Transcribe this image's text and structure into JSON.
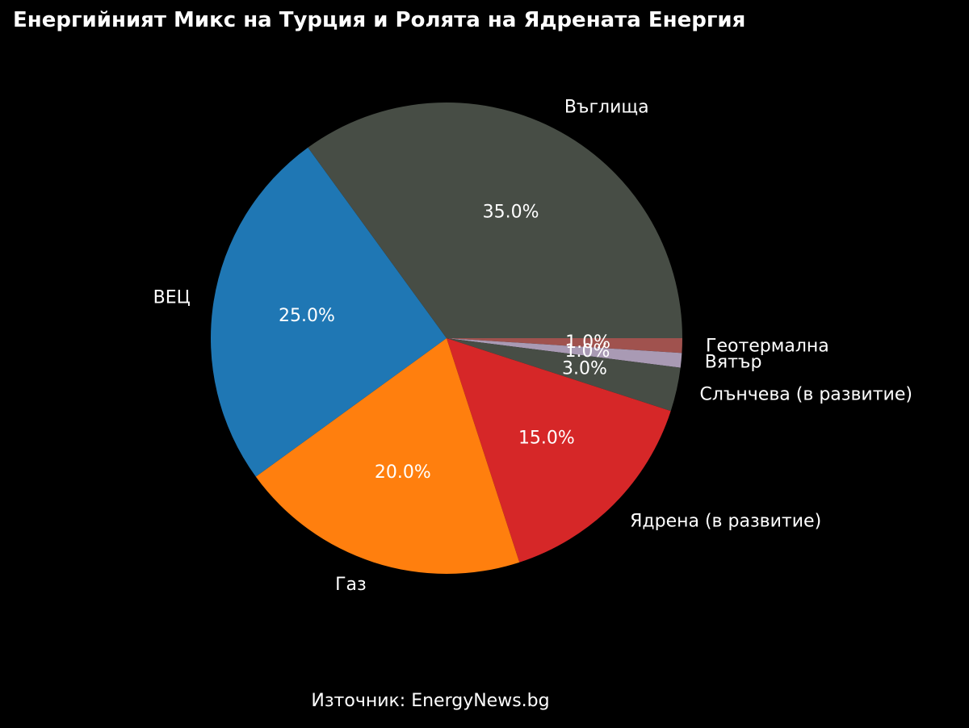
{
  "chart_data": {
    "type": "pie",
    "title": "Енергийният Микс на Турция и Ролята на Ядрената Енергия",
    "slices": [
      {
        "label": "Геотермална",
        "value": 1.0,
        "pct_label": "1.0%",
        "color": "#a0524e"
      },
      {
        "label": "Вятър",
        "value": 1.0,
        "pct_label": "1.0%",
        "color": "#a99ab4"
      },
      {
        "label": "Слънчева (в развитие)",
        "value": 3.0,
        "pct_label": "3.0%",
        "color": "#474d45"
      },
      {
        "label": "Ядрена (в развитие)",
        "value": 15.0,
        "pct_label": "15.0%",
        "color": "#d62728"
      },
      {
        "label": "Газ",
        "value": 20.0,
        "pct_label": "20.0%",
        "color": "#ff7f0e"
      },
      {
        "label": "ВЕЦ",
        "value": 25.0,
        "pct_label": "25.0%",
        "color": "#1f77b4"
      },
      {
        "label": "Въглища",
        "value": 35.0,
        "pct_label": "35.0%",
        "color": "#474d45"
      }
    ],
    "start_angle_deg": 0,
    "direction": "clockwise",
    "legend": "none"
  },
  "source_note": "Източник: EnergyNews.bg"
}
